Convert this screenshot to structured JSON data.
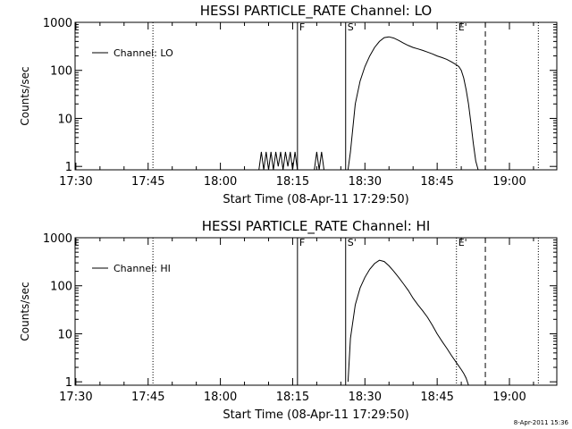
{
  "footer": {
    "timestamp": "8-Apr-2011 15:36"
  },
  "chart_data": [
    {
      "type": "line",
      "title": "HESSI PARTICLE_RATE Channel: LO",
      "xlabel": "Start Time (08-Apr-11 17:29:50)",
      "ylabel": "Counts/sec",
      "y_scale": "log",
      "ylim": [
        0.85,
        1000
      ],
      "xlim_minutes": [
        0,
        100
      ],
      "x_tick_labels": [
        "17:30",
        "17:45",
        "18:00",
        "18:15",
        "18:30",
        "18:45",
        "19:00"
      ],
      "y_tick_labels": [
        "1",
        "10",
        "100",
        "1000"
      ],
      "legend": {
        "label": "Channel: LO",
        "placement": "top-left"
      },
      "markers": [
        {
          "label": "",
          "time": "17:46",
          "style": "dotted"
        },
        {
          "label": "F",
          "time": "18:16",
          "style": "solid"
        },
        {
          "label": "S'",
          "time": "18:26",
          "style": "solid"
        },
        {
          "label": "E'",
          "time": "18:49",
          "style": "dotted"
        },
        {
          "label": "",
          "time": "18:55",
          "style": "dashed"
        },
        {
          "label": "",
          "time": "19:06",
          "style": "dotted"
        }
      ],
      "series": [
        {
          "name": "Channel: LO",
          "x": [
            "18:08:00",
            "18:08:30",
            "18:09:00",
            "18:09:30",
            "18:10:00",
            "18:10:30",
            "18:11:00",
            "18:11:30",
            "18:12:00",
            "18:12:30",
            "18:13:00",
            "18:13:30",
            "18:14:00",
            "18:14:30",
            "18:15:00",
            "18:15:30",
            "18:16:00",
            "18:16:30",
            "18:17:00",
            "18:17:30",
            "18:18:00",
            "18:18:30",
            "18:19:00",
            "18:19:30",
            "18:20:00",
            "18:20:30",
            "18:21:00",
            "18:21:30",
            "18:22:00",
            "18:26:30",
            "18:27:00",
            "18:28:00",
            "18:29:00",
            "18:30:00",
            "18:31:00",
            "18:32:00",
            "18:33:00",
            "18:34:00",
            "18:35:00",
            "18:36:00",
            "18:37:00",
            "18:38:00",
            "18:39:00",
            "18:40:00",
            "18:41:00",
            "18:42:00",
            "18:43:00",
            "18:44:00",
            "18:45:00",
            "18:46:00",
            "18:47:00",
            "18:48:00",
            "18:48:30",
            "18:49:00",
            "18:49:30",
            "18:50:00",
            "18:50:30",
            "18:51:00",
            "18:51:30",
            "18:52:00",
            "18:52:30",
            "18:53:00",
            "18:53:30"
          ],
          "values": [
            0.85,
            2,
            0.85,
            2,
            0.85,
            2,
            0.85,
            2,
            1,
            2,
            0.85,
            2,
            1,
            2,
            0.85,
            2,
            0.85,
            0.85,
            0.85,
            0.85,
            0.85,
            0.85,
            0.85,
            0.85,
            2,
            0.85,
            2,
            0.85,
            0.85,
            0.85,
            2,
            20,
            60,
            120,
            200,
            300,
            400,
            480,
            500,
            470,
            420,
            370,
            330,
            300,
            280,
            260,
            240,
            220,
            200,
            185,
            170,
            150,
            140,
            130,
            120,
            100,
            70,
            40,
            20,
            8,
            3,
            1.3,
            0.85
          ]
        }
      ]
    },
    {
      "type": "line",
      "title": "HESSI PARTICLE_RATE Channel: HI",
      "xlabel": "Start Time (08-Apr-11 17:29:50)",
      "ylabel": "Counts/sec",
      "y_scale": "log",
      "ylim": [
        0.85,
        1000
      ],
      "xlim_minutes": [
        0,
        100
      ],
      "x_tick_labels": [
        "17:30",
        "17:45",
        "18:00",
        "18:15",
        "18:30",
        "18:45",
        "19:00"
      ],
      "y_tick_labels": [
        "1",
        "10",
        "100",
        "1000"
      ],
      "legend": {
        "label": "Channel: HI",
        "placement": "top-left"
      },
      "markers": [
        {
          "label": "",
          "time": "17:46",
          "style": "dotted"
        },
        {
          "label": "F",
          "time": "18:16",
          "style": "solid"
        },
        {
          "label": "S'",
          "time": "18:26",
          "style": "solid"
        },
        {
          "label": "E'",
          "time": "18:49",
          "style": "dotted"
        },
        {
          "label": "",
          "time": "18:55",
          "style": "dashed"
        },
        {
          "label": "",
          "time": "19:06",
          "style": "dotted"
        }
      ],
      "series": [
        {
          "name": "Channel: HI",
          "x": [
            "18:26:30",
            "18:27:00",
            "18:28:00",
            "18:29:00",
            "18:30:00",
            "18:31:00",
            "18:32:00",
            "18:33:00",
            "18:34:00",
            "18:35:00",
            "18:36:00",
            "18:37:00",
            "18:38:00",
            "18:39:00",
            "18:40:00",
            "18:41:00",
            "18:42:00",
            "18:43:00",
            "18:44:00",
            "18:45:00",
            "18:46:00",
            "18:47:00",
            "18:48:00",
            "18:49:00",
            "18:50:00",
            "18:50:30",
            "18:51:00",
            "18:51:30"
          ],
          "values": [
            1,
            8,
            40,
            90,
            150,
            220,
            290,
            340,
            320,
            260,
            200,
            150,
            110,
            80,
            55,
            40,
            30,
            22,
            15,
            10,
            7,
            5,
            3.5,
            2.5,
            1.8,
            1.5,
            1.2,
            0.85
          ]
        }
      ]
    }
  ]
}
